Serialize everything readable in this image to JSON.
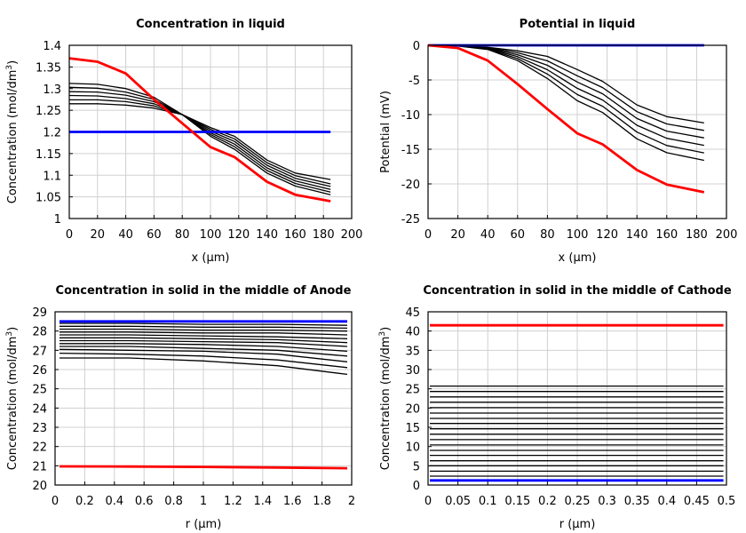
{
  "chart_data": [
    {
      "type": "line",
      "title": "Concentration in liquid",
      "xlabel": "x (µm)",
      "ylabel": "Concentration (mol/dm",
      "ylabel_sup": "3",
      "ylabel_end": ")",
      "xlim": [
        0,
        200
      ],
      "ylim": [
        1,
        1.4
      ],
      "xticks": [
        "0",
        "20",
        "40",
        "60",
        "80",
        "100",
        "120",
        "140",
        "160",
        "180",
        "200"
      ],
      "yticks": [
        "1",
        "1.05",
        "1.1",
        "1.15",
        "1.2",
        "1.25",
        "1.3",
        "1.35",
        "1.4"
      ],
      "grid": true,
      "x": [
        0,
        20,
        40,
        60,
        80,
        100,
        117,
        140,
        160,
        185
      ],
      "series": [
        {
          "color": "#000000",
          "values": [
            1.265,
            1.265,
            1.262,
            1.255,
            1.24,
            1.21,
            1.19,
            1.135,
            1.105,
            1.09
          ]
        },
        {
          "color": "#000000",
          "values": [
            1.274,
            1.274,
            1.27,
            1.26,
            1.24,
            1.206,
            1.184,
            1.129,
            1.099,
            1.08
          ]
        },
        {
          "color": "#000000",
          "values": [
            1.284,
            1.283,
            1.277,
            1.265,
            1.24,
            1.202,
            1.178,
            1.123,
            1.093,
            1.074
          ]
        },
        {
          "color": "#000000",
          "values": [
            1.293,
            1.292,
            1.285,
            1.27,
            1.24,
            1.198,
            1.172,
            1.117,
            1.087,
            1.067
          ]
        },
        {
          "color": "#000000",
          "values": [
            1.303,
            1.301,
            1.292,
            1.275,
            1.24,
            1.194,
            1.166,
            1.111,
            1.081,
            1.061
          ]
        },
        {
          "color": "#000000",
          "values": [
            1.312,
            1.31,
            1.3,
            1.28,
            1.24,
            1.19,
            1.16,
            1.105,
            1.075,
            1.055
          ]
        },
        {
          "color": "#0000ff",
          "values": [
            1.2,
            1.2,
            1.2,
            1.2,
            1.2,
            1.2,
            1.2,
            1.2,
            1.2,
            1.2
          ]
        },
        {
          "color": "#ff0000",
          "values": [
            1.37,
            1.362,
            1.335,
            1.275,
            1.22,
            1.165,
            1.142,
            1.085,
            1.055,
            1.04
          ]
        }
      ]
    },
    {
      "type": "line",
      "title": "Potential in liquid",
      "xlabel": "x (µm)",
      "ylabel": "Potential (mV)",
      "xlim": [
        0,
        200
      ],
      "ylim": [
        -25,
        0
      ],
      "xticks": [
        "0",
        "20",
        "40",
        "60",
        "80",
        "100",
        "120",
        "140",
        "160",
        "180",
        "200"
      ],
      "yticks": [
        "-25",
        "-20",
        "-15",
        "-10",
        "-5",
        "0"
      ],
      "grid": true,
      "x": [
        0,
        20,
        40,
        60,
        80,
        100,
        117,
        140,
        160,
        185
      ],
      "series": [
        {
          "color": "#000000",
          "values": [
            0,
            -0.05,
            -0.3,
            -0.8,
            -1.6,
            -3.5,
            -5.2,
            -8.6,
            -10.3,
            -11.2
          ]
        },
        {
          "color": "#000000",
          "values": [
            0,
            -0.06,
            -0.36,
            -1.08,
            -2.24,
            -4.4,
            -6.1,
            -9.58,
            -11.34,
            -12.28
          ]
        },
        {
          "color": "#000000",
          "values": [
            0,
            -0.07,
            -0.42,
            -1.36,
            -2.88,
            -5.3,
            -7.0,
            -10.56,
            -12.38,
            -13.36
          ]
        },
        {
          "color": "#000000",
          "values": [
            0,
            -0.08,
            -0.48,
            -1.64,
            -3.52,
            -6.2,
            -7.9,
            -11.54,
            -13.42,
            -14.44
          ]
        },
        {
          "color": "#000000",
          "values": [
            0,
            -0.09,
            -0.54,
            -1.92,
            -4.16,
            -7.1,
            -8.8,
            -12.52,
            -14.46,
            -15.52
          ]
        },
        {
          "color": "#000000",
          "values": [
            0,
            -0.1,
            -0.6,
            -2.2,
            -4.8,
            -8.0,
            -9.7,
            -13.5,
            -15.5,
            -16.6
          ]
        },
        {
          "color": "#0000ff",
          "values": [
            0,
            0,
            0,
            0,
            0,
            0,
            0,
            0,
            0,
            0
          ]
        },
        {
          "color": "#ff0000",
          "values": [
            0,
            -0.4,
            -2.2,
            -5.6,
            -9.2,
            -12.7,
            -14.3,
            -18,
            -20.1,
            -21.2
          ]
        }
      ]
    },
    {
      "type": "line",
      "title": "Concentration in solid in the middle of Anode",
      "xlabel": "r (µm)",
      "ylabel": "Concentration (mol/dm",
      "ylabel_sup": "3",
      "ylabel_end": ")",
      "xlim": [
        0,
        2
      ],
      "ylim": [
        20,
        29
      ],
      "xticks": [
        "0",
        "0.2",
        "0.4",
        "0.6",
        "0.8",
        "1",
        "1.2",
        "1.4",
        "1.6",
        "1.8",
        "2"
      ],
      "yticks": [
        "20",
        "21",
        "22",
        "23",
        "24",
        "25",
        "26",
        "27",
        "28",
        "29"
      ],
      "grid": true,
      "x": [
        0.03,
        0.5,
        1,
        1.5,
        1.97
      ],
      "series": [
        {
          "color": "#000000",
          "values": [
            26.6,
            26.6,
            26.45,
            26.2,
            25.75
          ]
        },
        {
          "color": "#000000",
          "values": [
            26.85,
            26.8,
            26.7,
            26.5,
            26.1
          ]
        },
        {
          "color": "#000000",
          "values": [
            27.05,
            27.0,
            26.95,
            26.8,
            26.4
          ]
        },
        {
          "color": "#000000",
          "values": [
            27.2,
            27.2,
            27.1,
            27.0,
            26.7
          ]
        },
        {
          "color": "#000000",
          "values": [
            27.35,
            27.35,
            27.3,
            27.2,
            26.95
          ]
        },
        {
          "color": "#000000",
          "values": [
            27.5,
            27.5,
            27.45,
            27.4,
            27.2
          ]
        },
        {
          "color": "#000000",
          "values": [
            27.65,
            27.65,
            27.6,
            27.55,
            27.4
          ]
        },
        {
          "color": "#000000",
          "values": [
            27.8,
            27.8,
            27.75,
            27.7,
            27.6
          ]
        },
        {
          "color": "#000000",
          "values": [
            27.95,
            27.95,
            27.9,
            27.9,
            27.8
          ]
        },
        {
          "color": "#000000",
          "values": [
            28.1,
            28.1,
            28.05,
            28.05,
            28.0
          ]
        },
        {
          "color": "#000000",
          "values": [
            28.25,
            28.25,
            28.2,
            28.2,
            28.15
          ]
        },
        {
          "color": "#000000",
          "values": [
            28.4,
            28.4,
            28.35,
            28.35,
            28.3
          ]
        },
        {
          "color": "#0000ff",
          "values": [
            28.5,
            28.5,
            28.5,
            28.5,
            28.5
          ]
        },
        {
          "color": "#ff0000",
          "values": [
            20.97,
            20.96,
            20.94,
            20.91,
            20.87
          ]
        }
      ]
    },
    {
      "type": "line",
      "title": "Concentration in solid in the middle of Cathode",
      "xlabel": "r (µm)",
      "ylabel": "Concentration (mol/dm",
      "ylabel_sup": "3",
      "ylabel_end": ")",
      "xlim": [
        0,
        0.5
      ],
      "ylim": [
        0,
        45
      ],
      "xticks": [
        "0",
        "0.05",
        "0.1",
        "0.15",
        "0.2",
        "0.25",
        "0.3",
        "0.35",
        "0.4",
        "0.45",
        "0.5"
      ],
      "yticks": [
        "0",
        "5",
        "10",
        "15",
        "20",
        "25",
        "30",
        "35",
        "40",
        "45"
      ],
      "grid": true,
      "x": [
        0.003,
        0.495
      ],
      "series": [
        {
          "color": "#000000",
          "values": [
            2.3,
            2.3
          ]
        },
        {
          "color": "#000000",
          "values": [
            3.6,
            3.6
          ]
        },
        {
          "color": "#000000",
          "values": [
            5.0,
            5.0
          ]
        },
        {
          "color": "#000000",
          "values": [
            6.3,
            6.3
          ]
        },
        {
          "color": "#000000",
          "values": [
            7.7,
            7.7
          ]
        },
        {
          "color": "#000000",
          "values": [
            9.0,
            9.0
          ]
        },
        {
          "color": "#000000",
          "values": [
            10.4,
            10.4
          ]
        },
        {
          "color": "#000000",
          "values": [
            11.8,
            11.8
          ]
        },
        {
          "color": "#000000",
          "values": [
            13.2,
            13.2
          ]
        },
        {
          "color": "#000000",
          "values": [
            14.6,
            14.6
          ]
        },
        {
          "color": "#000000",
          "values": [
            16.0,
            16.0
          ]
        },
        {
          "color": "#000000",
          "values": [
            17.3,
            17.3
          ]
        },
        {
          "color": "#000000",
          "values": [
            18.7,
            18.7
          ]
        },
        {
          "color": "#000000",
          "values": [
            20.1,
            20.1
          ]
        },
        {
          "color": "#000000",
          "values": [
            21.5,
            21.5
          ]
        },
        {
          "color": "#000000",
          "values": [
            22.9,
            22.9
          ]
        },
        {
          "color": "#000000",
          "values": [
            24.3,
            24.3
          ]
        },
        {
          "color": "#000000",
          "values": [
            25.7,
            25.7
          ]
        },
        {
          "color": "#0000ff",
          "values": [
            1.2,
            1.2
          ]
        },
        {
          "color": "#ff0000",
          "values": [
            41.5,
            41.5
          ]
        }
      ]
    }
  ]
}
